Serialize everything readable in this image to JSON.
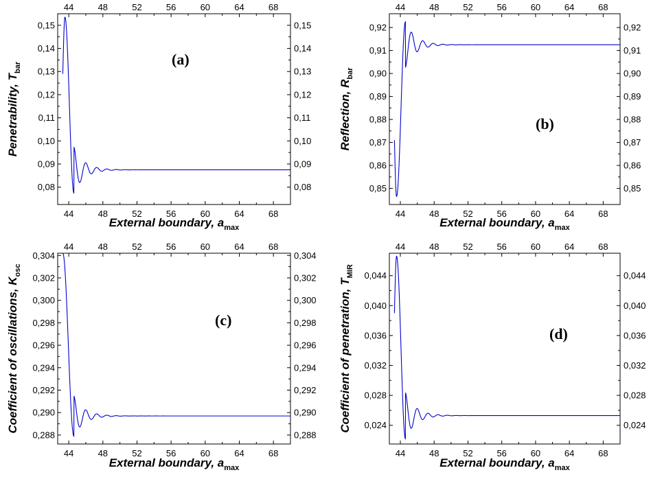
{
  "chart_data": [
    {
      "type": "line",
      "label": "(a)",
      "xlabel": "External boundary, a",
      "xlabel_sub": "max",
      "ylabel": "Penetrability, T",
      "ylabel_sub": "bar",
      "xlim": [
        42.7,
        70
      ],
      "ylim": [
        0.0725,
        0.155
      ],
      "xticks": [
        44,
        48,
        52,
        56,
        60,
        64,
        68
      ],
      "yticks": [
        "0,08",
        "0,09",
        "0,10",
        "0,11",
        "0,12",
        "0,13",
        "0,14",
        "0,15"
      ],
      "ytick_values": [
        0.08,
        0.09,
        0.1,
        0.11,
        0.12,
        0.13,
        0.14,
        0.15
      ],
      "line_color": "#0000cc",
      "series": [
        {
          "x_start": 43.3,
          "x_end": 70,
          "asymptote": 0.0875,
          "first_extremum_x": 43.55,
          "first_extremum_y": 0.1535,
          "second_extremum_x": 44.6,
          "second_extremum_y": 0.0775,
          "start_y": 0.129,
          "decay": 0.85
        }
      ]
    },
    {
      "type": "line",
      "label": "(b)",
      "xlabel": "External boundary, a",
      "xlabel_sub": "max",
      "ylabel": "Reflection, R",
      "ylabel_sub": "bar",
      "xlim": [
        42.7,
        70
      ],
      "ylim": [
        0.843,
        0.926
      ],
      "xticks": [
        44,
        48,
        52,
        56,
        60,
        64,
        68
      ],
      "yticks": [
        "0,85",
        "0,86",
        "0,87",
        "0,88",
        "0,89",
        "0,90",
        "0,91",
        "0,92"
      ],
      "ytick_values": [
        0.85,
        0.86,
        0.87,
        0.88,
        0.89,
        0.9,
        0.91,
        0.92
      ],
      "line_color": "#0000cc",
      "series": [
        {
          "x_start": 43.3,
          "x_end": 70,
          "asymptote": 0.9125,
          "first_extremum_x": 43.55,
          "first_extremum_y": 0.8465,
          "second_extremum_x": 44.6,
          "second_extremum_y": 0.9225,
          "start_y": 0.871,
          "decay": 0.85
        }
      ]
    },
    {
      "type": "line",
      "label": "(c)",
      "xlabel": "External boundary, a",
      "xlabel_sub": "max",
      "ylabel": "Coefficient of oscillations, K",
      "ylabel_sub": "osc",
      "xlim": [
        42.7,
        70
      ],
      "ylim": [
        0.2872,
        0.3042
      ],
      "xticks": [
        44,
        48,
        52,
        56,
        60,
        64,
        68
      ],
      "yticks": [
        "0,288",
        "0,290",
        "0,292",
        "0,294",
        "0,296",
        "0,298",
        "0,300",
        "0,302",
        "0,304"
      ],
      "ytick_values": [
        0.288,
        0.29,
        0.292,
        0.294,
        0.296,
        0.298,
        0.3,
        0.302,
        0.304
      ],
      "line_color": "#0000cc",
      "series": [
        {
          "x_start": 43.3,
          "x_end": 70,
          "asymptote": 0.2897,
          "first_extremum_x": 43.3,
          "first_extremum_y": 0.3042,
          "second_extremum_x": 44.6,
          "second_extremum_y": 0.2879,
          "start_y": 0.3042,
          "decay": 0.85
        }
      ]
    },
    {
      "type": "line",
      "label": "(d)",
      "xlabel": "External boundary, a",
      "xlabel_sub": "max",
      "ylabel": "Coefficient of penetration, T",
      "ylabel_sub": "MIR",
      "xlim": [
        42.7,
        70
      ],
      "ylim": [
        0.0215,
        0.047
      ],
      "xticks": [
        44,
        48,
        52,
        56,
        60,
        64,
        68
      ],
      "yticks": [
        "0,024",
        "0,028",
        "0,032",
        "0,036",
        "0,040",
        "0,044"
      ],
      "ytick_values": [
        0.024,
        0.028,
        0.032,
        0.036,
        0.04,
        0.044
      ],
      "line_color": "#0000cc",
      "series": [
        {
          "x_start": 43.3,
          "x_end": 70,
          "asymptote": 0.0253,
          "first_extremum_x": 43.55,
          "first_extremum_y": 0.0466,
          "second_extremum_x": 44.6,
          "second_extremum_y": 0.0222,
          "start_y": 0.039,
          "decay": 0.85
        }
      ]
    }
  ]
}
